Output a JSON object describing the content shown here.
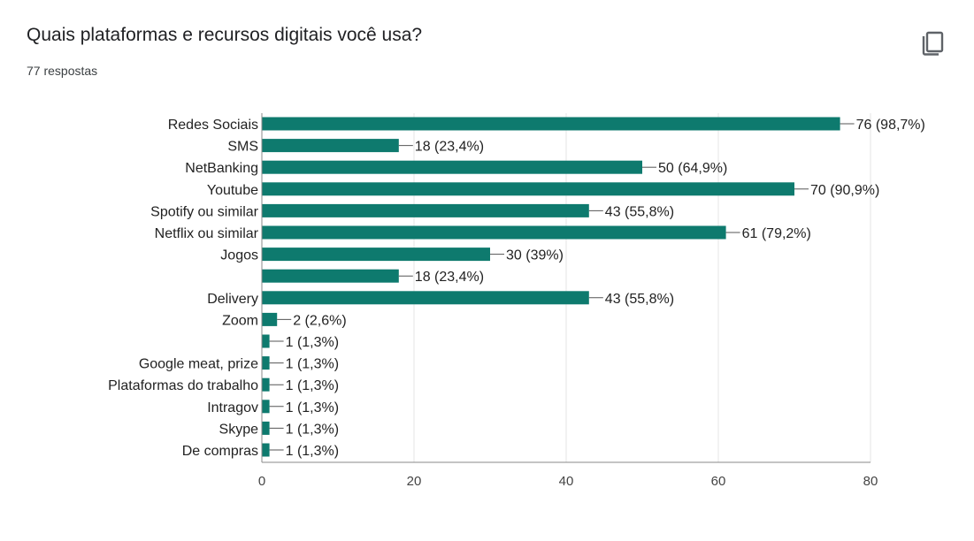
{
  "question": {
    "title": "Quais plataformas e recursos digitais você usa?",
    "responses": "77 respostas"
  },
  "actions": {
    "copy_icon": "copy-icon"
  },
  "colors": {
    "bar": "#0e7a6e",
    "grid": "#e6e6e6",
    "axis": "#888888"
  },
  "chart_data": {
    "type": "bar",
    "orientation": "horizontal",
    "categories": [
      "Redes Sociais",
      "SMS",
      "NetBanking",
      "Youtube",
      "Spotify ou similar",
      "Netflix ou similar",
      "Jogos",
      "",
      "Delivery",
      "Zoom",
      "",
      "Google meat, prize",
      "Plataformas do trabalho",
      "Intragov",
      "Skype",
      "De compras"
    ],
    "values": [
      76,
      18,
      50,
      70,
      43,
      61,
      30,
      18,
      43,
      2,
      1,
      1,
      1,
      1,
      1,
      1
    ],
    "data_labels": [
      "76 (98,7%)",
      "18 (23,4%)",
      "50 (64,9%)",
      "70 (90,9%)",
      "43 (55,8%)",
      "61 (79,2%)",
      "30 (39%)",
      "18 (23,4%)",
      "43 (55,8%)",
      "2 (2,6%)",
      "1 (1,3%)",
      "1 (1,3%)",
      "1 (1,3%)",
      "1 (1,3%)",
      "1 (1,3%)",
      "1 (1,3%)"
    ],
    "xlim": [
      0,
      80
    ],
    "xticks": [
      0,
      20,
      40,
      60,
      80
    ],
    "grid": true,
    "legend": "none"
  }
}
